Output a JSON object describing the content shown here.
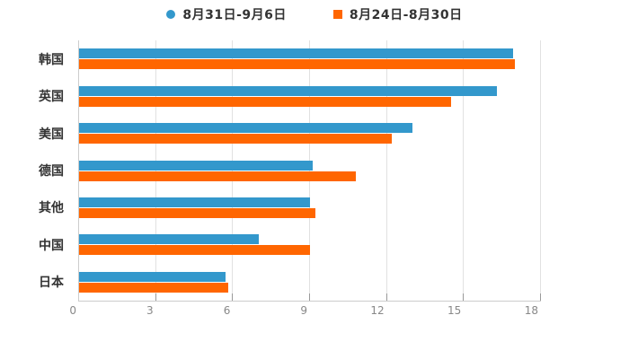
{
  "chart_data": {
    "type": "bar",
    "orientation": "horizontal",
    "title": "",
    "categories": [
      "韩国",
      "英国",
      "美国",
      "德国",
      "其他",
      "中国",
      "日本"
    ],
    "series": [
      {
        "name": "8月31日-9月6日",
        "color": "#3398CC",
        "marker": "circle",
        "values": [
          16.9,
          16.3,
          13.0,
          9.1,
          9.0,
          7.0,
          5.7
        ]
      },
      {
        "name": "8月24日-8月30日",
        "color": "#FF6600",
        "marker": "square",
        "values": [
          17.0,
          14.5,
          12.2,
          10.8,
          9.2,
          9.0,
          5.8
        ]
      }
    ],
    "xlabel": "",
    "ylabel": "",
    "xlim": [
      0,
      18
    ],
    "x_ticks": [
      "0",
      "3",
      "6",
      "9",
      "12",
      "15",
      "18"
    ],
    "grid": true,
    "legend_position": "top"
  },
  "colors": {
    "background": "#ffffff",
    "gridline": "#e1e1e1",
    "axis_line": "#cccccc",
    "tick_stub": "#999999",
    "tick_label": "#888888",
    "category_label": "#333333",
    "legend_label": "#333333"
  }
}
